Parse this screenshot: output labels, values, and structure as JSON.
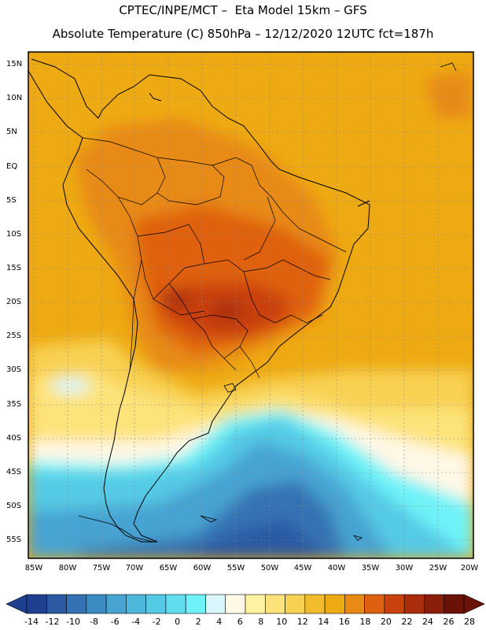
{
  "header": {
    "line1": "CPTEC/INPE/MCT –  Eta Model 15km – GFS",
    "line2": "Absolute Temperature (C) 850hPa – 12/12/2020 12UTC fct=187h"
  },
  "map": {
    "region": "South America",
    "lat_labels": [
      "15N",
      "10N",
      "5N",
      "EQ",
      "5S",
      "10S",
      "15S",
      "20S",
      "25S",
      "30S",
      "35S",
      "40S",
      "45S",
      "50S",
      "55S"
    ],
    "lon_labels": [
      "85W",
      "80W",
      "75W",
      "70W",
      "65W",
      "60W",
      "55W",
      "50W",
      "45W",
      "40W",
      "35W",
      "30W",
      "25W",
      "20W"
    ]
  },
  "colorbar": {
    "labels": [
      "-14",
      "-12",
      "-10",
      "-8",
      "-6",
      "-4",
      "-2",
      "0",
      "2",
      "4",
      "6",
      "8",
      "10",
      "12",
      "14",
      "16",
      "18",
      "20",
      "22",
      "24",
      "26",
      "28"
    ],
    "colors": [
      "#1f3f8f",
      "#2b5aa3",
      "#3572b3",
      "#3d8bc3",
      "#46a3d2",
      "#4cb8dc",
      "#55cae6",
      "#60def0",
      "#70f3f8",
      "#d8f6fb",
      "#fff8e6",
      "#fff2a0",
      "#fde37a",
      "#f8d152",
      "#f2bc2d",
      "#eeaa12",
      "#e88a14",
      "#df6010",
      "#c9410c",
      "#a92d0a",
      "#8a1e0a",
      "#6a1208"
    ]
  }
}
